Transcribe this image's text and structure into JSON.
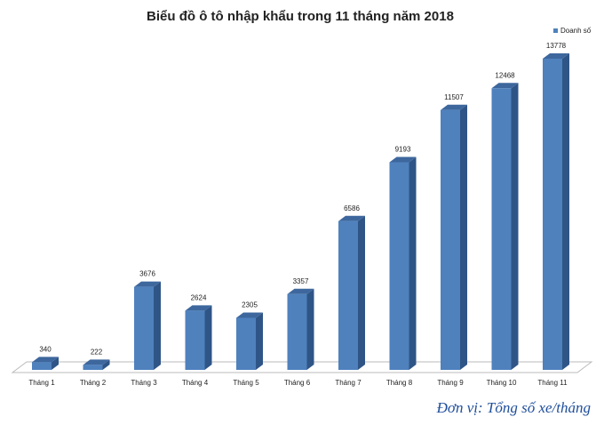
{
  "chart_data": {
    "type": "bar",
    "title": "Biểu đồ ô tô nhập khẩu trong 11 tháng năm 2018",
    "categories": [
      "Tháng 1",
      "Tháng 2",
      "Tháng 3",
      "Tháng 4",
      "Tháng 5",
      "Tháng 6",
      "Tháng 7",
      "Tháng 8",
      "Tháng 9",
      "Tháng 10",
      "Tháng 11"
    ],
    "series": [
      {
        "name": "Doanh số",
        "color": "#4f81bd",
        "values": [
          340,
          222,
          3676,
          2624,
          2305,
          3357,
          6586,
          9193,
          11507,
          12468,
          13778
        ]
      }
    ],
    "legend": "top-right",
    "caption": "Đơn vị: Tổng số xe/tháng"
  }
}
